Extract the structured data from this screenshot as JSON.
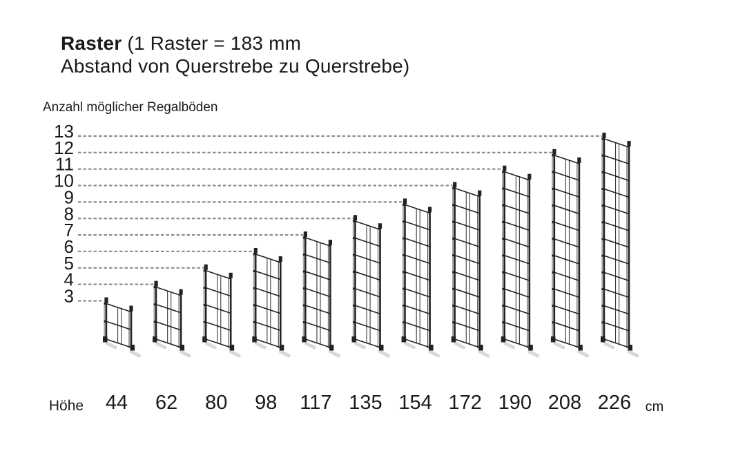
{
  "header": {
    "title_bold": "Raster",
    "title_rest": " (1 Raster = 183 mm",
    "title_line2": "Abstand von Querstrebe zu Querstrebe)"
  },
  "y_axis_label": "Anzahl möglicher Regalböden",
  "x_axis": {
    "label": "Höhe",
    "unit": "cm"
  },
  "chart_data": {
    "type": "pictorial-bar",
    "title": "Raster (1 Raster = 183 mm Abstand von Querstrebe zu Querstrebe)",
    "raster_note": "1 Raster = 183 mm",
    "xlabel": "Höhe (cm)",
    "ylabel": "Anzahl möglicher Regalböden",
    "categories": [
      44,
      62,
      80,
      98,
      117,
      135,
      154,
      172,
      190,
      208,
      226
    ],
    "values": [
      3,
      4,
      5,
      6,
      7,
      8,
      9,
      10,
      11,
      12,
      13
    ],
    "yticks": [
      13,
      12,
      11,
      10,
      9,
      8,
      7,
      6,
      5,
      4,
      3
    ],
    "ylim": [
      3,
      13
    ],
    "grid": "dashed",
    "legend": false
  },
  "style": {
    "frame_color": "#222222",
    "post_highlight_color": "#a9a9a9",
    "thin_line_color": "#3a3a3a",
    "dash_color": "#8c8c8c",
    "shadow_color": "#c6c6c6",
    "text_color": "#1a1a1a",
    "background": "#ffffff"
  }
}
